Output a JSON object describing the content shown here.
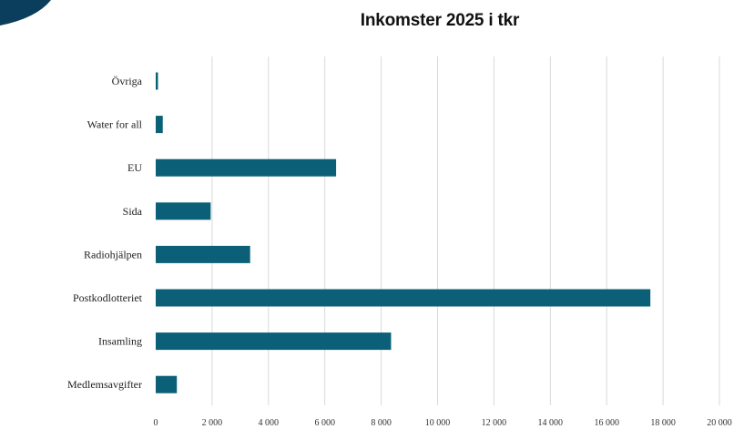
{
  "colors": {
    "bar": "#0b6078",
    "corner": "#0b3e5c",
    "grid": "#d9d9d9"
  },
  "chart_data": {
    "type": "bar",
    "orientation": "horizontal",
    "title": "Inkomster 2025 i tkr",
    "categories": [
      "Övriga",
      "Water for all",
      "EU",
      "Sida",
      "Radiohjälpen",
      "Postkodlotteriet",
      "Insamling",
      "Medlemsavgifter"
    ],
    "values": [
      80,
      250,
      6400,
      1950,
      3350,
      17550,
      8350,
      750
    ],
    "xlim": [
      0,
      20000
    ],
    "xticks": [
      0,
      2000,
      4000,
      6000,
      8000,
      10000,
      12000,
      14000,
      16000,
      18000,
      20000
    ],
    "xtick_labels": [
      "0",
      "2 000",
      "4 000",
      "6 000",
      "8 000",
      "10 000",
      "12 000",
      "14 000",
      "16 000",
      "18 000",
      "20 000"
    ],
    "grid": true,
    "legend": "none",
    "xlabel": "",
    "ylabel": ""
  }
}
